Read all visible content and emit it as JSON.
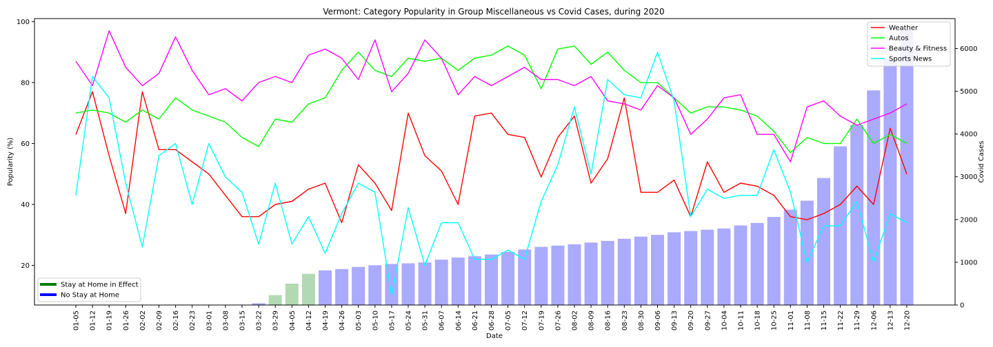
{
  "chart_data": {
    "type": "line",
    "title": "Vermont: Category Popularity in Group Miscellaneous vs Covid Cases, during 2020",
    "xlabel": "Date",
    "ylabel": "Popularity (%)",
    "y2label": "Covid Cases",
    "ylim": [
      7,
      101
    ],
    "y2lim": [
      0,
      6700
    ],
    "yticks": [
      20,
      40,
      60,
      80,
      100
    ],
    "y2ticks": [
      0,
      1000,
      2000,
      3000,
      4000,
      5000,
      6000
    ],
    "grid": false,
    "categories": [
      "01-05",
      "01-12",
      "01-19",
      "01-26",
      "02-02",
      "02-09",
      "02-16",
      "02-23",
      "03-01",
      "03-08",
      "03-15",
      "03-22",
      "03-29",
      "04-05",
      "04-12",
      "04-19",
      "04-26",
      "05-03",
      "05-10",
      "05-17",
      "05-24",
      "05-31",
      "06-07",
      "06-14",
      "06-21",
      "06-28",
      "07-05",
      "07-12",
      "07-19",
      "07-26",
      "08-02",
      "08-09",
      "08-16",
      "08-23",
      "08-30",
      "09-06",
      "09-13",
      "09-20",
      "09-27",
      "10-04",
      "10-11",
      "10-18",
      "10-25",
      "11-01",
      "11-08",
      "11-15",
      "11-22",
      "11-29",
      "12-06",
      "12-13",
      "12-20"
    ],
    "series": [
      {
        "name": "Weather",
        "color": "#ff0000",
        "values": [
          63,
          77,
          56,
          37,
          77,
          58,
          58,
          54,
          50,
          43,
          36,
          36,
          40,
          41,
          45,
          47,
          34,
          53,
          47,
          38,
          70,
          56,
          51,
          40,
          69,
          70,
          63,
          62,
          49,
          62,
          69,
          47,
          55,
          75,
          44,
          44,
          48,
          36,
          54,
          44,
          47,
          46,
          43,
          36,
          35,
          37,
          40,
          46,
          40,
          65,
          50
        ]
      },
      {
        "name": "Autos",
        "color": "#00ff00",
        "values": [
          70,
          71,
          70,
          67,
          71,
          68,
          75,
          71,
          69,
          67,
          62,
          59,
          68,
          67,
          73,
          75,
          84,
          90,
          84,
          82,
          88,
          87,
          88,
          84,
          88,
          89,
          92,
          89,
          78,
          91,
          92,
          86,
          90,
          84,
          80,
          80,
          75,
          70,
          72,
          72,
          71,
          69,
          64,
          57,
          62,
          60,
          60,
          68,
          60,
          63,
          60
        ]
      },
      {
        "name": "Beauty & Fitness",
        "color": "#ff00ff",
        "values": [
          87,
          79,
          97,
          85,
          79,
          83,
          95,
          84,
          76,
          78,
          74,
          80,
          82,
          80,
          89,
          91,
          88,
          81,
          94,
          77,
          83,
          94,
          88,
          76,
          82,
          79,
          82,
          85,
          81,
          81,
          79,
          82,
          74,
          73,
          71,
          79,
          75,
          63,
          68,
          75,
          76,
          63,
          63,
          54,
          72,
          74,
          69,
          66,
          68,
          70,
          73
        ]
      },
      {
        "name": "Sports News",
        "color": "#00ffff",
        "values": [
          43,
          82,
          75,
          47,
          26,
          56,
          60,
          40,
          60,
          49,
          44,
          27,
          47,
          27,
          36,
          24,
          37,
          47,
          44,
          10,
          39,
          20,
          34,
          34,
          22,
          22,
          25,
          22,
          41,
          53,
          72,
          50,
          81,
          76,
          75,
          90,
          74,
          36,
          45,
          42,
          43,
          43,
          58,
          44,
          21,
          33,
          33,
          41,
          21,
          37,
          34
        ]
      }
    ],
    "bars": {
      "name": "Covid Cases",
      "values": [
        0,
        0,
        0,
        0,
        0,
        0,
        0,
        0,
        0,
        0,
        0,
        40,
        230,
        500,
        730,
        810,
        840,
        890,
        930,
        960,
        975,
        995,
        1060,
        1110,
        1140,
        1180,
        1240,
        1300,
        1360,
        1390,
        1420,
        1460,
        1500,
        1550,
        1600,
        1640,
        1700,
        1730,
        1760,
        1790,
        1860,
        1920,
        2060,
        2230,
        2440,
        2970,
        3710,
        4210,
        5020,
        5760,
        6440
      ],
      "colors": [
        "#aaaaff",
        "#aaaaff",
        "#aaaaff",
        "#aaaaff",
        "#aaaaff",
        "#aaaaff",
        "#aaaaff",
        "#aaaaff",
        "#aaaaff",
        "#aaaaff",
        "#aaaaff",
        "#aaaaff",
        "#b3d9b3",
        "#b3d9b3",
        "#b3d9b3",
        "#aaaaff",
        "#aaaaff",
        "#aaaaff",
        "#aaaaff",
        "#aaaaff",
        "#aaaaff",
        "#aaaaff",
        "#aaaaff",
        "#aaaaff",
        "#aaaaff",
        "#aaaaff",
        "#aaaaff",
        "#aaaaff",
        "#aaaaff",
        "#aaaaff",
        "#aaaaff",
        "#aaaaff",
        "#aaaaff",
        "#aaaaff",
        "#aaaaff",
        "#aaaaff",
        "#aaaaff",
        "#aaaaff",
        "#aaaaff",
        "#aaaaff",
        "#aaaaff",
        "#aaaaff",
        "#aaaaff",
        "#aaaaff",
        "#aaaaff",
        "#aaaaff",
        "#aaaaff",
        "#aaaaff",
        "#aaaaff",
        "#aaaaff",
        "#aaaaff"
      ]
    },
    "legend_top_right": {
      "placement": "top-right",
      "entries": [
        "Weather",
        "Autos",
        "Beauty & Fitness",
        "Sports News"
      ]
    },
    "legend_bottom_left": {
      "placement": "bottom-left",
      "entries": [
        {
          "label": "Stay at Home in Effect",
          "color": "#008000"
        },
        {
          "label": "No Stay at Home",
          "color": "#0000ff"
        }
      ]
    }
  }
}
